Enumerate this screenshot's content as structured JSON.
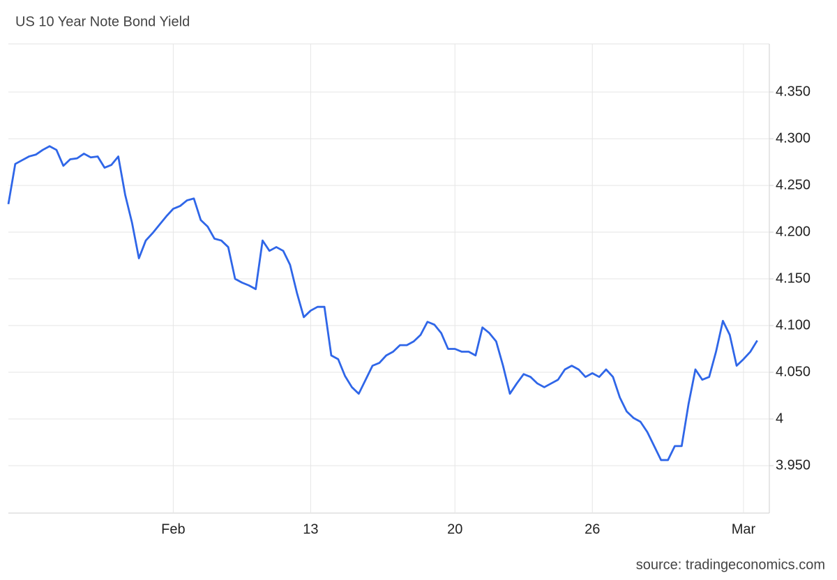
{
  "chart_data": {
    "type": "line",
    "title": "US 10 Year Note Bond Yield",
    "source": "source: tradingeconomics.com",
    "categories": [
      null,
      null,
      null,
      null,
      null,
      null,
      null,
      null,
      null,
      null,
      null,
      null,
      null,
      null,
      null,
      null,
      null,
      null,
      null,
      null,
      null,
      null,
      null,
      null,
      "Feb",
      null,
      null,
      null,
      null,
      null,
      null,
      null,
      null,
      null,
      null,
      null,
      null,
      null,
      null,
      null,
      null,
      null,
      null,
      null,
      "13",
      null,
      null,
      null,
      null,
      null,
      null,
      null,
      null,
      null,
      null,
      null,
      null,
      null,
      null,
      null,
      null,
      null,
      null,
      null,
      null,
      "20",
      null,
      null,
      null,
      null,
      null,
      null,
      null,
      null,
      null,
      null,
      null,
      null,
      null,
      null,
      null,
      null,
      null,
      null,
      null,
      "26",
      null,
      null,
      null,
      null,
      null,
      null,
      null,
      null,
      null,
      null,
      null,
      null,
      null,
      null,
      null,
      null,
      null,
      null,
      null,
      null,
      null,
      "Mar",
      null,
      null
    ],
    "values": [
      4.23,
      4.273,
      4.277,
      4.281,
      4.283,
      4.288,
      4.292,
      4.288,
      4.271,
      4.278,
      4.279,
      4.284,
      4.28,
      4.281,
      4.269,
      4.272,
      4.281,
      4.24,
      4.21,
      4.172,
      4.191,
      4.199,
      4.208,
      4.217,
      4.225,
      4.228,
      4.234,
      4.236,
      4.213,
      4.206,
      4.193,
      4.191,
      4.184,
      4.15,
      4.146,
      4.143,
      4.139,
      4.191,
      4.18,
      4.184,
      4.18,
      4.165,
      4.135,
      4.109,
      4.116,
      4.12,
      4.12,
      4.068,
      4.064,
      4.046,
      4.034,
      4.027,
      4.042,
      4.057,
      4.06,
      4.068,
      4.072,
      4.079,
      4.079,
      4.083,
      4.09,
      4.104,
      4.101,
      4.092,
      4.075,
      4.075,
      4.072,
      4.072,
      4.068,
      4.098,
      4.092,
      4.083,
      4.057,
      4.027,
      4.038,
      4.048,
      4.045,
      4.038,
      4.034,
      4.038,
      4.042,
      4.053,
      4.057,
      4.053,
      4.045,
      4.049,
      4.045,
      4.053,
      4.045,
      4.023,
      4.008,
      4.001,
      3.997,
      3.986,
      3.971,
      3.956,
      3.956,
      3.971,
      3.971,
      4.016,
      4.053,
      4.042,
      4.045,
      4.072,
      4.105,
      4.09,
      4.057,
      4.064,
      4.072,
      4.084
    ],
    "color": "#2f66e8",
    "ylim": [
      3.9,
      4.4
    ],
    "yticks": [
      {
        "value": 3.95,
        "label": "3.950"
      },
      4,
      {
        "value": 4.05,
        "label": "4.050"
      },
      {
        "value": 4.1,
        "label": "4.100"
      },
      {
        "value": 4.15,
        "label": "4.150"
      },
      {
        "value": 4.2,
        "label": "4.200"
      },
      {
        "value": 4.25,
        "label": "4.250"
      },
      {
        "value": 4.3,
        "label": "4.300"
      },
      {
        "value": 4.35,
        "label": "4.350"
      }
    ],
    "grid": true
  }
}
